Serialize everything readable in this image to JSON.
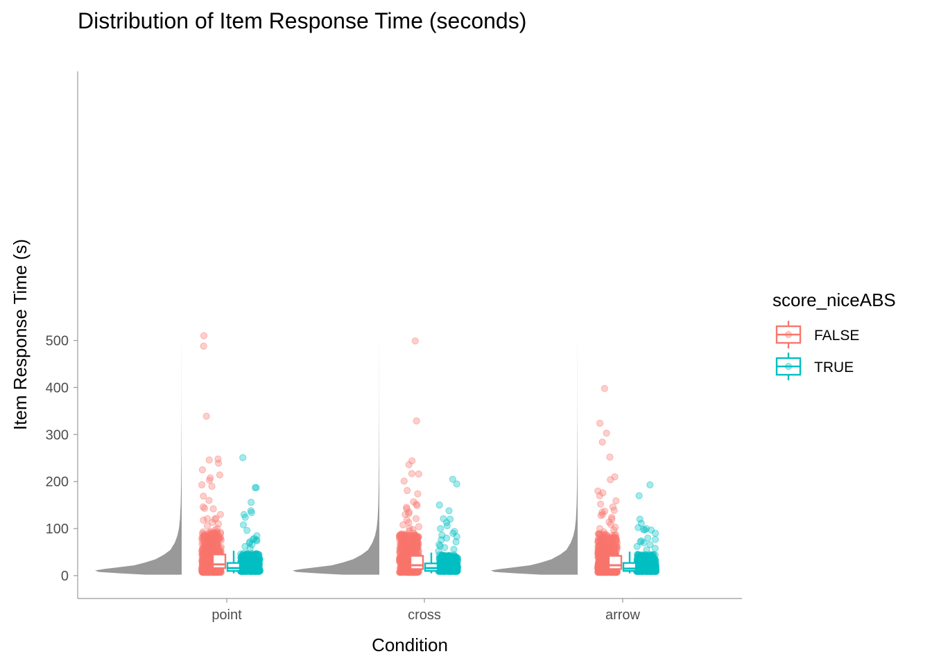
{
  "chart_data": {
    "type": "raincloud",
    "title": "Distribution of Item Response Time (seconds)",
    "xlabel": "Condition",
    "ylabel": "Item Response Time (s)",
    "categories": [
      "point",
      "cross",
      "arrow"
    ],
    "ylim": [
      -22,
      535
    ],
    "yticks": [
      0,
      100,
      200,
      300,
      400,
      500
    ],
    "grid": false,
    "legend": {
      "title": "score_niceABS",
      "position": "right",
      "entries": [
        {
          "label": "FALSE",
          "color": "#F8766D"
        },
        {
          "label": "TRUE",
          "color": "#00BFC4"
        }
      ]
    },
    "density_color": "#999999",
    "boxplots": {
      "point": {
        "FALSE": {
          "lower_whisker": 3,
          "q1": 16,
          "median": 24,
          "q3": 45,
          "upper_whisker": 90
        },
        "TRUE": {
          "lower_whisker": 5,
          "q1": 10,
          "median": 16,
          "q3": 27,
          "upper_whisker": 53
        }
      },
      "cross": {
        "FALSE": {
          "lower_whisker": 3,
          "q1": 14,
          "median": 22,
          "q3": 42,
          "upper_whisker": 85
        },
        "TRUE": {
          "lower_whisker": 5,
          "q1": 10,
          "median": 16,
          "q3": 26,
          "upper_whisker": 49
        }
      },
      "arrow": {
        "FALSE": {
          "lower_whisker": 3,
          "q1": 14,
          "median": 22,
          "q3": 42,
          "upper_whisker": 85
        },
        "TRUE": {
          "lower_whisker": 5,
          "q1": 10,
          "median": 15,
          "q3": 27,
          "upper_whisker": 51
        }
      }
    },
    "outliers": {
      "point": {
        "FALSE": [
          510,
          488,
          339,
          248,
          246,
          239,
          225,
          214,
          208,
          203,
          193,
          190,
          169,
          160,
          146,
          143,
          142,
          130,
          122,
          121,
          120,
          118,
          113,
          110,
          106,
          100,
          97,
          93
        ],
        "TRUE": [
          251,
          187,
          187,
          156,
          138,
          134,
          130,
          124,
          108,
          96,
          85,
          79,
          77,
          76,
          74,
          72,
          69,
          66,
          62,
          58
        ]
      },
      "cross": {
        "FALSE": [
          499,
          329,
          244,
          236,
          217,
          216,
          201,
          181,
          174,
          157,
          152,
          149,
          145,
          142,
          135,
          132,
          130,
          121,
          118,
          113,
          108,
          104,
          101,
          98,
          95,
          90
        ],
        "TRUE": [
          205,
          195,
          150,
          138,
          121,
          120,
          113,
          106,
          100,
          94,
          90,
          86,
          83,
          80,
          76,
          72,
          66,
          63,
          60,
          56,
          52
        ]
      },
      "arrow": {
        "FALSE": [
          398,
          324,
          303,
          284,
          252,
          210,
          204,
          180,
          176,
          170,
          159,
          152,
          146,
          139,
          137,
          135,
          130,
          128,
          124,
          120,
          114,
          109,
          103,
          100,
          97,
          93,
          89
        ],
        "TRUE": [
          193,
          170,
          120,
          111,
          102,
          100,
          98,
          97,
          97,
          90,
          80,
          77,
          74,
          72,
          70,
          66,
          62,
          58,
          55
        ]
      }
    },
    "density_profile": [
      {
        "y": 2,
        "d": 0.42
      },
      {
        "y": 5,
        "d": 0.72
      },
      {
        "y": 8,
        "d": 0.96
      },
      {
        "y": 11,
        "d": 1.0
      },
      {
        "y": 14,
        "d": 0.9
      },
      {
        "y": 18,
        "d": 0.72
      },
      {
        "y": 22,
        "d": 0.55
      },
      {
        "y": 28,
        "d": 0.42
      },
      {
        "y": 35,
        "d": 0.3
      },
      {
        "y": 45,
        "d": 0.2
      },
      {
        "y": 55,
        "d": 0.13
      },
      {
        "y": 70,
        "d": 0.08
      },
      {
        "y": 85,
        "d": 0.05
      },
      {
        "y": 100,
        "d": 0.032
      },
      {
        "y": 120,
        "d": 0.02
      },
      {
        "y": 150,
        "d": 0.012
      },
      {
        "y": 190,
        "d": 0.007
      },
      {
        "y": 250,
        "d": 0.004
      },
      {
        "y": 330,
        "d": 0.002
      },
      {
        "y": 400,
        "d": 0.0012
      },
      {
        "y": 450,
        "d": 0.0006
      },
      {
        "y": 512,
        "d": 0.0002
      }
    ]
  }
}
